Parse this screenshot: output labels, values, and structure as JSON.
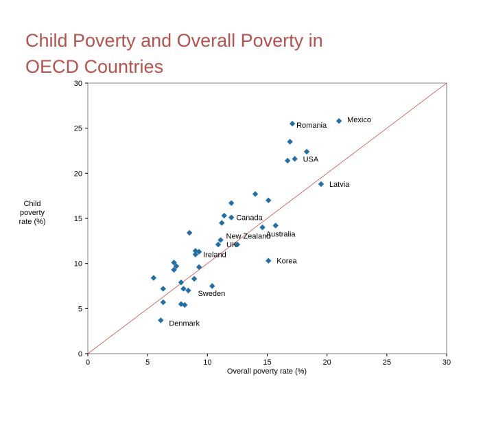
{
  "title_line1": "Child Poverty and Overall Poverty in",
  "title_line2": "OECD Countries",
  "colors": {
    "title": "#b5524d",
    "marker": "#1f6fa8",
    "diagonal": "#c0504d",
    "frame": "#808080"
  },
  "chart_data": {
    "type": "scatter",
    "title": "Child Poverty and Overall Poverty in OECD Countries",
    "xlabel": "Overall poverty rate (%)",
    "ylabel": "Child poverty rate (%)",
    "xlim": [
      0,
      30
    ],
    "ylim": [
      0,
      30
    ],
    "xticks": [
      "0",
      "5",
      "10",
      "15",
      "20",
      "25",
      "30"
    ],
    "yticks": [
      "0",
      "5",
      "10",
      "15",
      "20",
      "25",
      "30"
    ],
    "grid": false,
    "reference_line": "y = x",
    "points": [
      {
        "x": 21.0,
        "y": 25.8,
        "label": "Mexico"
      },
      {
        "x": 17.1,
        "y": 25.5,
        "label": "Romania"
      },
      {
        "x": 16.9,
        "y": 23.5,
        "label": ""
      },
      {
        "x": 18.3,
        "y": 22.4,
        "label": ""
      },
      {
        "x": 17.3,
        "y": 21.6,
        "label": "USA"
      },
      {
        "x": 16.7,
        "y": 21.4,
        "label": ""
      },
      {
        "x": 19.5,
        "y": 18.8,
        "label": "Latvia"
      },
      {
        "x": 14.0,
        "y": 17.7,
        "label": ""
      },
      {
        "x": 15.1,
        "y": 17.0,
        "label": ""
      },
      {
        "x": 12.0,
        "y": 16.7,
        "label": ""
      },
      {
        "x": 11.4,
        "y": 15.3,
        "label": ""
      },
      {
        "x": 12.0,
        "y": 15.1,
        "label": "Canada"
      },
      {
        "x": 11.2,
        "y": 14.5,
        "label": ""
      },
      {
        "x": 14.6,
        "y": 14.0,
        "label": ""
      },
      {
        "x": 15.7,
        "y": 14.2,
        "label": "Australia"
      },
      {
        "x": 8.5,
        "y": 13.4,
        "label": ""
      },
      {
        "x": 11.1,
        "y": 12.6,
        "label": "New Zealand"
      },
      {
        "x": 10.9,
        "y": 12.1,
        "label": "UK"
      },
      {
        "x": 12.5,
        "y": 12.1,
        "label": ""
      },
      {
        "x": 9.0,
        "y": 11.4,
        "label": ""
      },
      {
        "x": 9.3,
        "y": 11.3,
        "label": "Ireland"
      },
      {
        "x": 9.0,
        "y": 11.0,
        "label": ""
      },
      {
        "x": 15.1,
        "y": 10.3,
        "label": "Korea"
      },
      {
        "x": 7.2,
        "y": 10.1,
        "label": ""
      },
      {
        "x": 7.4,
        "y": 9.7,
        "label": ""
      },
      {
        "x": 9.3,
        "y": 9.6,
        "label": ""
      },
      {
        "x": 7.2,
        "y": 9.3,
        "label": ""
      },
      {
        "x": 5.5,
        "y": 8.4,
        "label": ""
      },
      {
        "x": 8.9,
        "y": 8.3,
        "label": ""
      },
      {
        "x": 7.8,
        "y": 7.9,
        "label": ""
      },
      {
        "x": 10.4,
        "y": 7.5,
        "label": ""
      },
      {
        "x": 6.3,
        "y": 7.2,
        "label": ""
      },
      {
        "x": 8.0,
        "y": 7.2,
        "label": ""
      },
      {
        "x": 8.4,
        "y": 7.0,
        "label": "Sweden"
      },
      {
        "x": 6.3,
        "y": 5.7,
        "label": ""
      },
      {
        "x": 7.8,
        "y": 5.5,
        "label": ""
      },
      {
        "x": 8.1,
        "y": 5.4,
        "label": ""
      },
      {
        "x": 6.1,
        "y": 3.7,
        "label": "Denmark"
      }
    ]
  }
}
